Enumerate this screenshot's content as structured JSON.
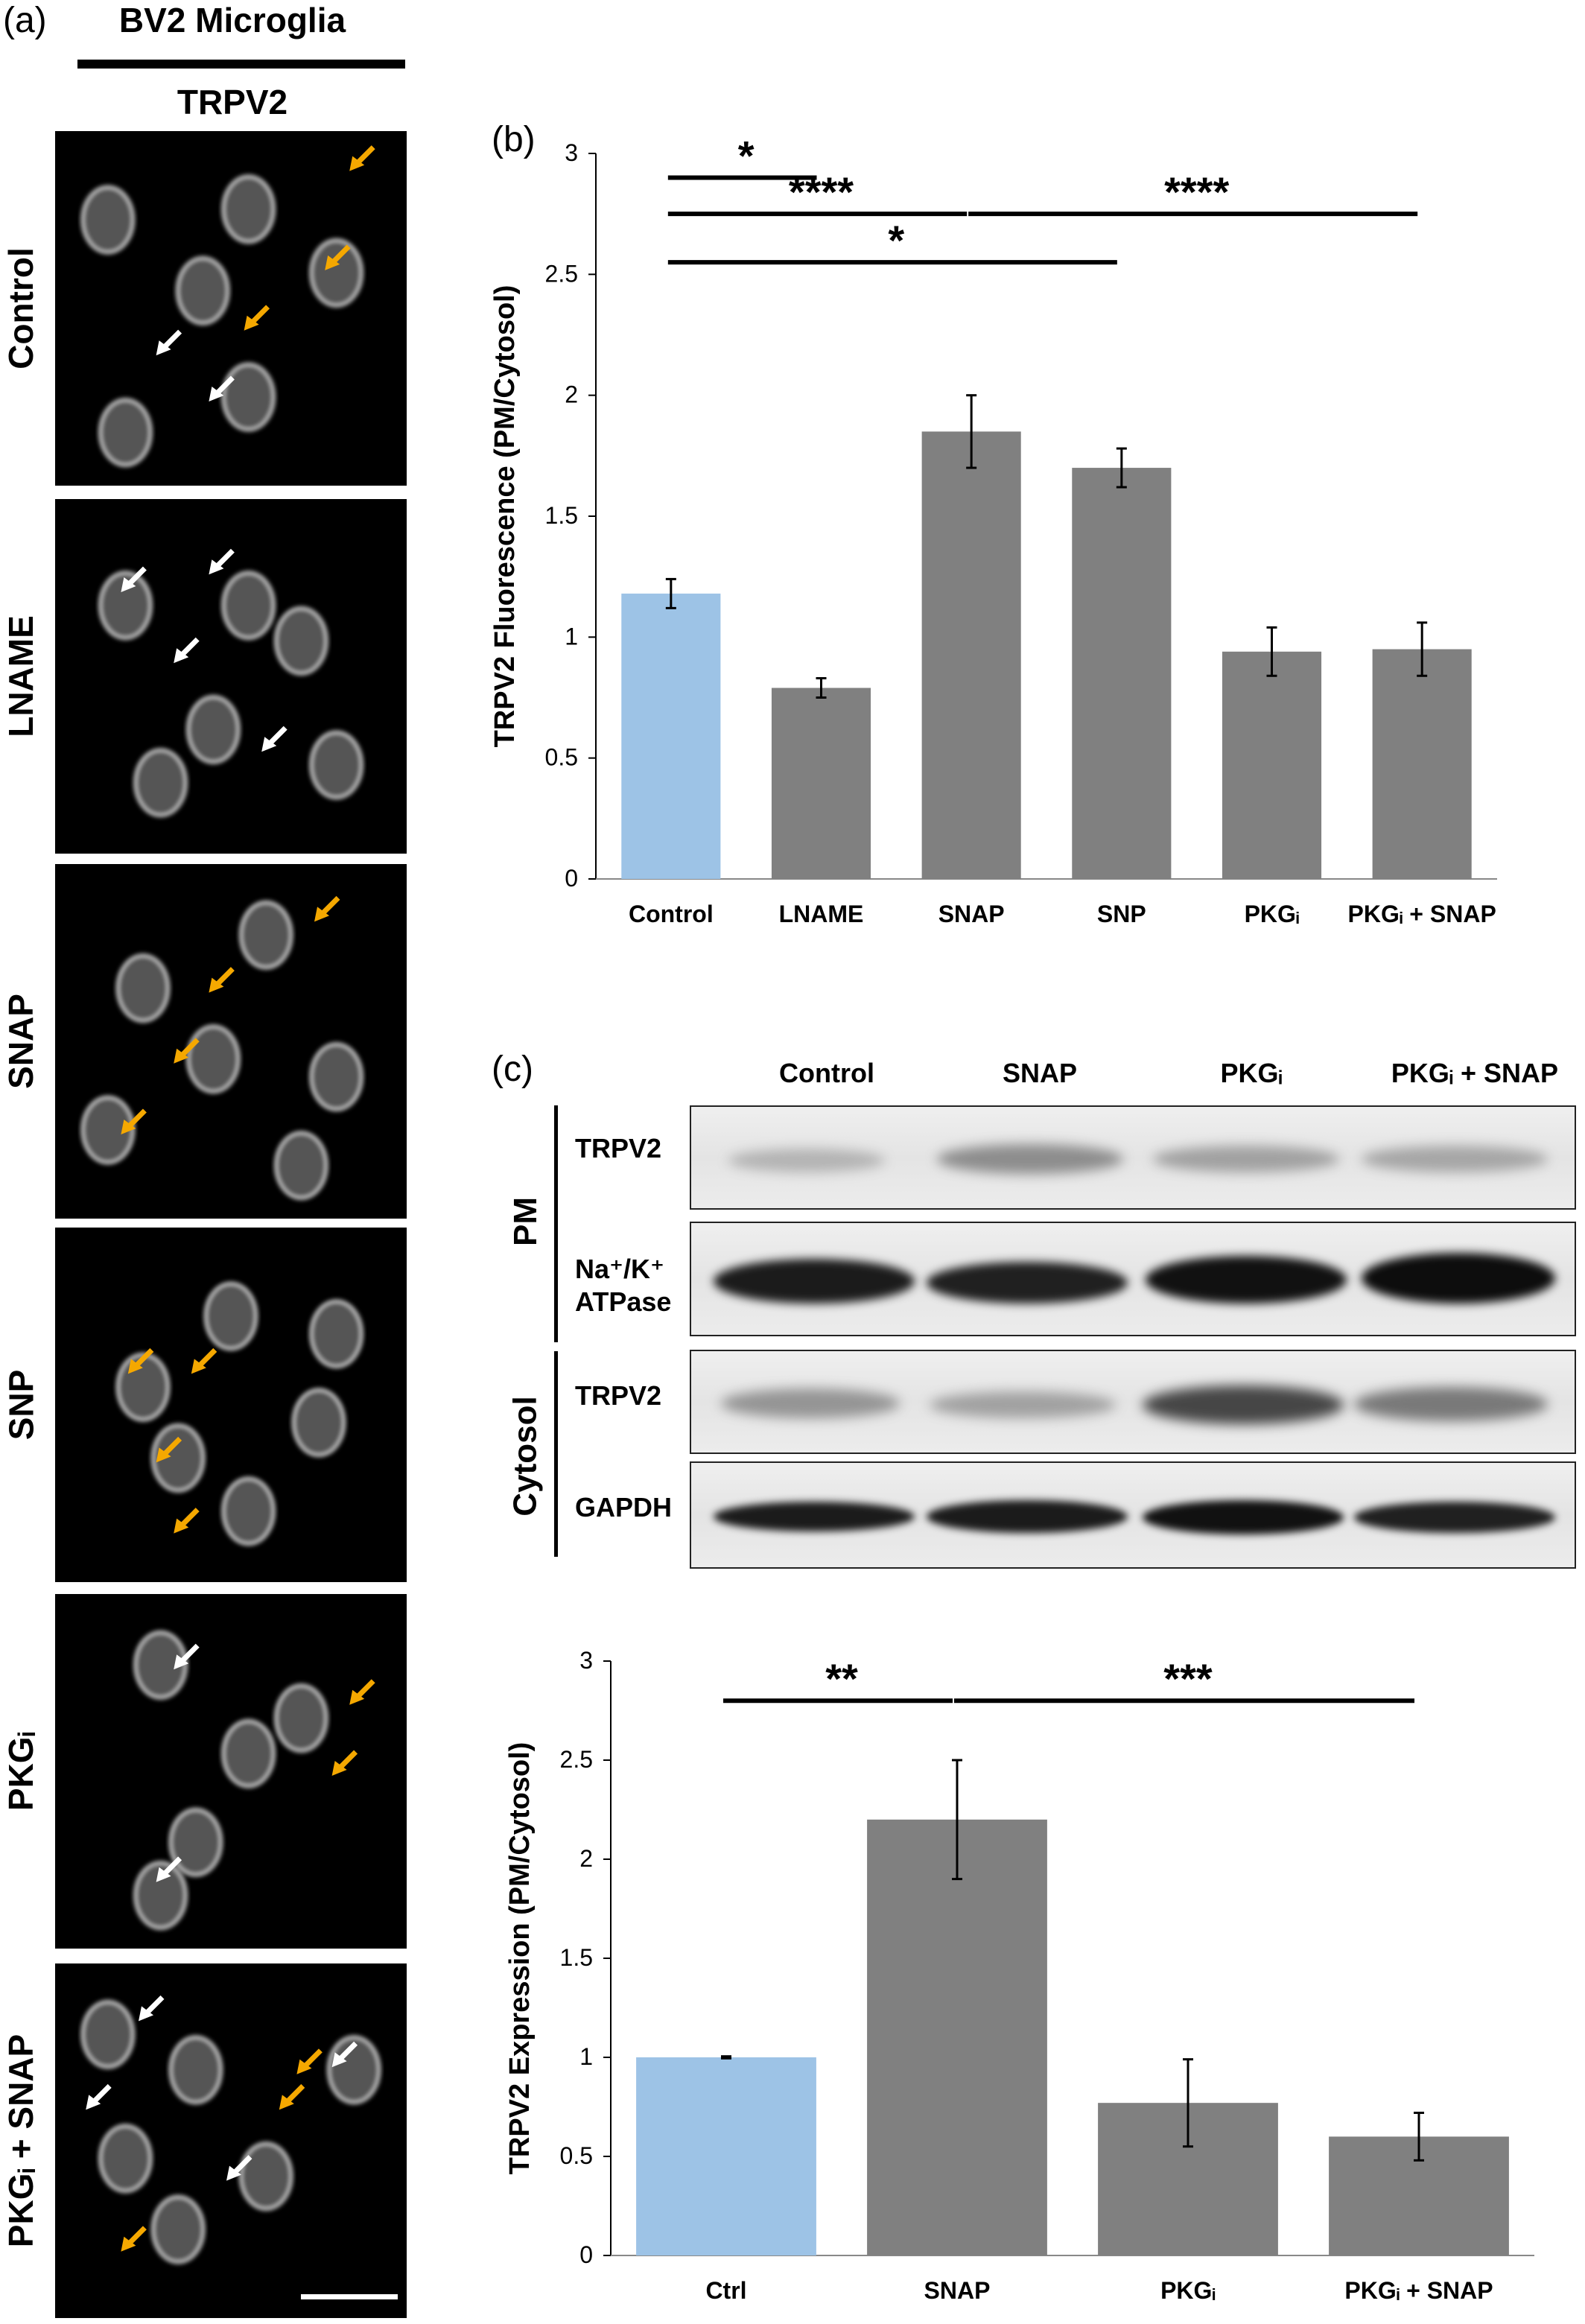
{
  "panel_a": {
    "letter": "(a)",
    "title": "BV2 Microglia",
    "subtitle": "TRPV2",
    "rows": [
      {
        "label": "Control"
      },
      {
        "label": "LNAME"
      },
      {
        "label": "SNAP"
      },
      {
        "label": "SNP"
      },
      {
        "label": "PKGᵢ"
      },
      {
        "label": "PKGᵢ + SNAP"
      }
    ]
  },
  "panel_b": {
    "letter": "(b)"
  },
  "panel_c": {
    "letter": "(c)",
    "lanes": [
      "Control",
      "SNAP",
      "PKGᵢ",
      "PKGᵢ + SNAP"
    ],
    "groups": [
      {
        "name": "PM",
        "rows": [
          "TRPV2",
          "Na⁺/K⁺ ATPase"
        ]
      },
      {
        "name": "Cytosol",
        "rows": [
          "TRPV2",
          "GAPDH"
        ]
      }
    ]
  },
  "colors": {
    "highlight_bar": "#9dc3e6",
    "bar": "#808080"
  },
  "chart_data": [
    {
      "type": "bar",
      "id": "b",
      "title": "",
      "xlabel": "",
      "ylabel": "TRPV2 Fluorescence (PM/Cytosol)",
      "ylim": [
        0,
        3
      ],
      "yticks": [
        "0",
        "0.5",
        "1",
        "1.5",
        "2",
        "2.5",
        "3"
      ],
      "categories": [
        "Control",
        "LNAME",
        "SNAP",
        "SNP",
        "PKGᵢ",
        "PKGᵢ + SNAP"
      ],
      "values": [
        1.18,
        0.79,
        1.85,
        1.7,
        0.94,
        0.95
      ],
      "errors": [
        0.06,
        0.04,
        0.15,
        0.08,
        0.1,
        0.11
      ],
      "bar_colors": [
        "#9dc3e6",
        "#808080",
        "#808080",
        "#808080",
        "#808080",
        "#808080"
      ],
      "grid": false,
      "significance": [
        {
          "from": "Control",
          "to": "LNAME",
          "label": "*",
          "y": 2.9
        },
        {
          "from": "Control",
          "to": "SNAP",
          "label": "****",
          "y": 2.75
        },
        {
          "from": "SNAP",
          "to": "PKGᵢ + SNAP",
          "label": "****",
          "y": 2.75
        },
        {
          "from": "Control",
          "to": "SNP",
          "label": "*",
          "y": 2.55
        }
      ]
    },
    {
      "type": "bar",
      "id": "c",
      "title": "",
      "xlabel": "",
      "ylabel": "TRPV2 Expression (PM/Cytosol)",
      "ylim": [
        0,
        3
      ],
      "yticks": [
        "0",
        "0.5",
        "1",
        "1.5",
        "2",
        "2.5",
        "3"
      ],
      "categories": [
        "Ctrl",
        "SNAP",
        "PKGᵢ",
        "PKGᵢ + SNAP"
      ],
      "values": [
        1.0,
        2.2,
        0.77,
        0.6
      ],
      "errors": [
        0.005,
        0.3,
        0.22,
        0.12
      ],
      "bar_colors": [
        "#9dc3e6",
        "#808080",
        "#808080",
        "#808080"
      ],
      "grid": false,
      "significance": [
        {
          "from": "Ctrl",
          "to": "SNAP",
          "label": "**",
          "y": 2.8
        },
        {
          "from": "SNAP",
          "to": "PKGᵢ + SNAP",
          "label": "***",
          "y": 2.8
        }
      ]
    }
  ]
}
